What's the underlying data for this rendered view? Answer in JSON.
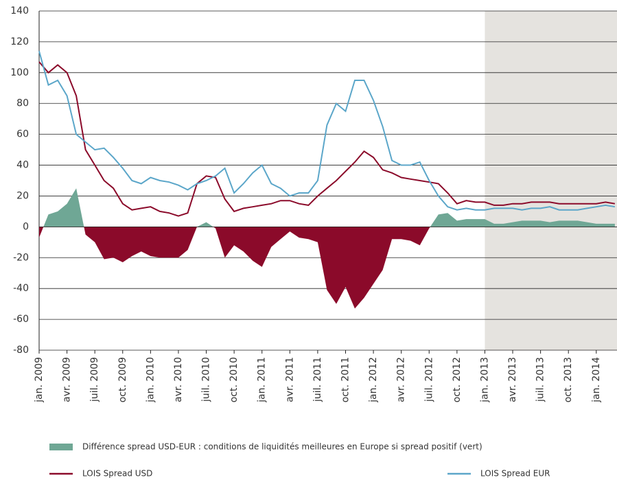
{
  "chart_data": {
    "type": "line",
    "categories": [
      "jan. 2009",
      null,
      null,
      "avr. 2009",
      null,
      null,
      "juil. 2009",
      null,
      null,
      "oct. 2009",
      null,
      null,
      "jan. 2010",
      null,
      null,
      "avr. 2010",
      null,
      null,
      "juil. 2010",
      null,
      null,
      "oct. 2010",
      null,
      null,
      "jan. 2011",
      null,
      null,
      "avr. 2011",
      null,
      null,
      "juil. 2011",
      null,
      null,
      "oct. 2011",
      null,
      null,
      "jan. 2012",
      null,
      null,
      "avr. 2012",
      null,
      null,
      "juil. 2012",
      null,
      null,
      "oct. 2012",
      null,
      null,
      "jan. 2013",
      null,
      null,
      "avr. 2013",
      null,
      null,
      "juil. 2013",
      null,
      null,
      "oct. 2013",
      null,
      null,
      "jan. 2014",
      null,
      null
    ],
    "series": [
      {
        "name": "Différence spread USD-EUR : conditions de liquidités meilleures en Europe si spread positif (vert)",
        "style": "area",
        "color": "#6fa795",
        "negative_color": "#8b0a2a",
        "values": [
          -7,
          8,
          10,
          15,
          25,
          -5,
          -10,
          -21,
          -20,
          -23,
          -19,
          -16,
          -19,
          -20,
          -20,
          -20,
          -15,
          0,
          3,
          -1,
          -20,
          -12,
          -16,
          -22,
          -26,
          -13,
          -8,
          -3,
          -7,
          -8,
          -10,
          -41,
          -50,
          -39,
          -53,
          -46,
          -37,
          -28,
          -8,
          -8,
          -9,
          -12,
          -1,
          8,
          9,
          4,
          5,
          5,
          5,
          2,
          2,
          3,
          4,
          4,
          4,
          3,
          4,
          4,
          4,
          3,
          2,
          2,
          2
        ]
      },
      {
        "name": "LOIS Spread USD",
        "style": "line",
        "color": "#8b0a2a",
        "values": [
          107,
          100,
          105,
          100,
          85,
          50,
          40,
          30,
          25,
          15,
          11,
          12,
          13,
          10,
          9,
          7,
          9,
          28,
          33,
          32,
          18,
          10,
          12,
          13,
          14,
          15,
          17,
          17,
          15,
          14,
          20,
          25,
          30,
          36,
          42,
          49,
          45,
          37,
          35,
          32,
          31,
          30,
          29,
          28,
          22,
          15,
          17,
          16,
          16,
          14,
          14,
          15,
          15,
          16,
          16,
          16,
          15,
          15,
          15,
          15,
          15,
          16,
          15
        ]
      },
      {
        "name": "LOIS Spread EUR",
        "style": "line",
        "color": "#5ba6c9",
        "values": [
          114,
          92,
          95,
          85,
          60,
          55,
          50,
          51,
          45,
          38,
          30,
          28,
          32,
          30,
          29,
          27,
          24,
          28,
          30,
          33,
          38,
          22,
          28,
          35,
          40,
          28,
          25,
          20,
          22,
          22,
          30,
          66,
          80,
          75,
          95,
          95,
          82,
          65,
          43,
          40,
          40,
          42,
          30,
          20,
          13,
          11,
          12,
          11,
          11,
          12,
          12,
          12,
          11,
          12,
          12,
          13,
          11,
          11,
          11,
          12,
          13,
          14,
          13
        ]
      }
    ],
    "ylim": [
      -80,
      140
    ],
    "yticks": [
      -80,
      -60,
      -40,
      -20,
      0,
      20,
      40,
      60,
      80,
      100,
      120,
      140
    ],
    "grid": true,
    "shaded_from": "jan. 2013"
  }
}
